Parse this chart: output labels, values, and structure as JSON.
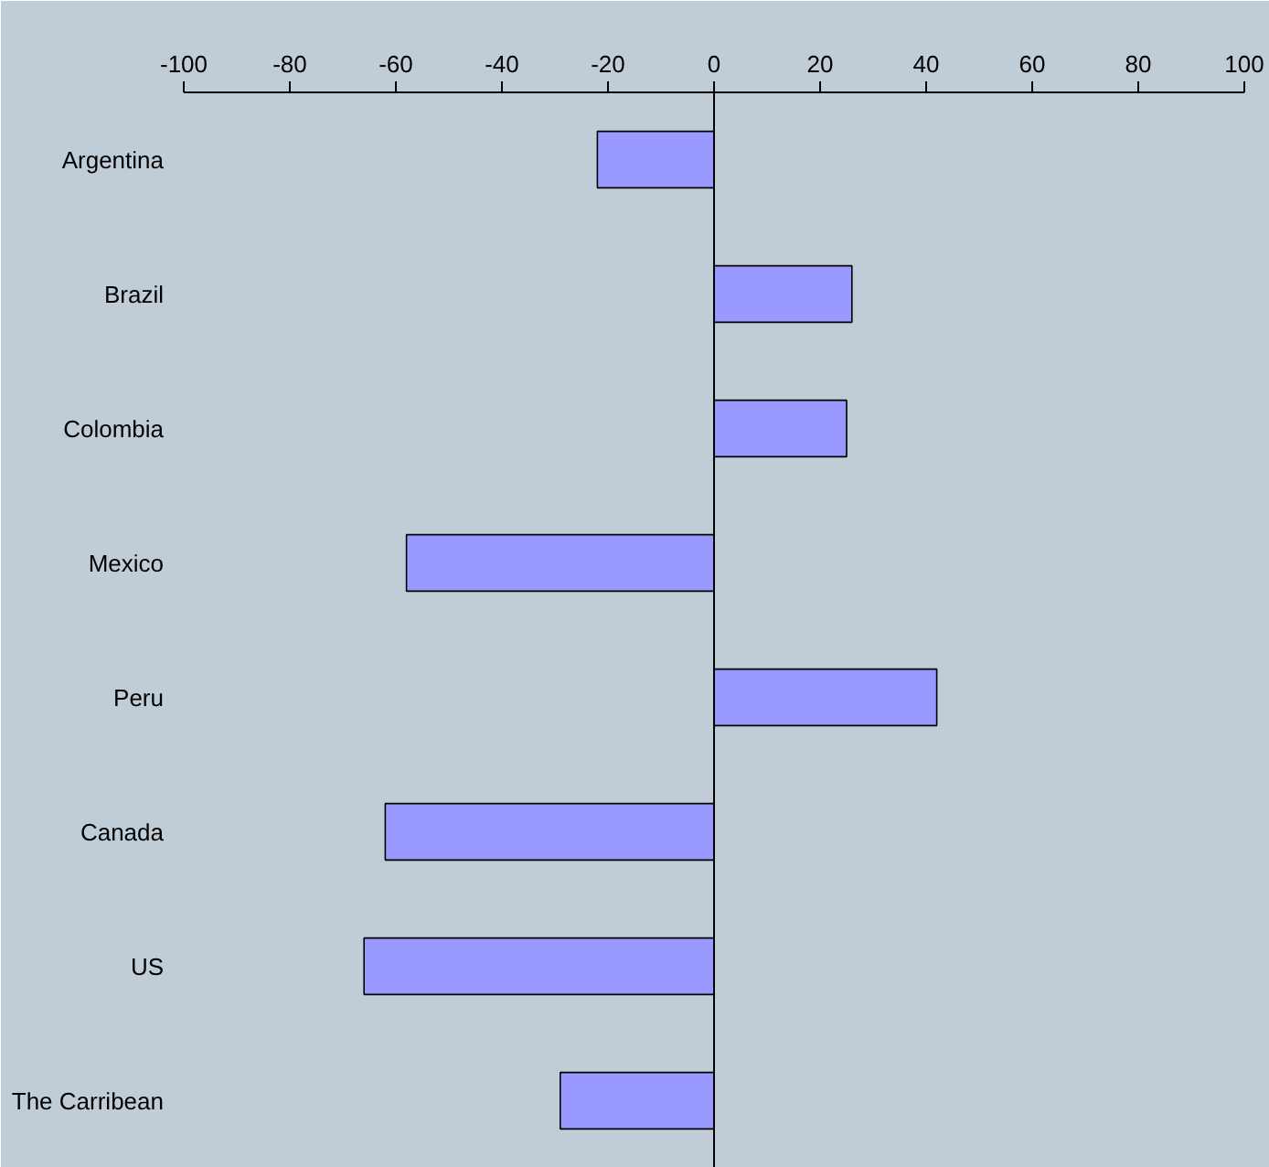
{
  "chart_data": {
    "type": "bar",
    "orientation": "horizontal",
    "categories": [
      "Argentina",
      "Brazil",
      "Colombia",
      "Mexico",
      "Peru",
      "Canada",
      "US",
      "The Carribean"
    ],
    "values": [
      -22,
      26,
      25,
      -58,
      42,
      -62,
      -66,
      -29
    ],
    "color": "#9999ff",
    "xlim": [
      -100,
      100
    ],
    "xticks": [
      -100,
      -80,
      -60,
      -40,
      -20,
      0,
      20,
      40,
      60,
      80,
      100
    ],
    "ref_lines": [
      {
        "axis": "x",
        "value": 0,
        "color": "#000000"
      }
    ]
  }
}
